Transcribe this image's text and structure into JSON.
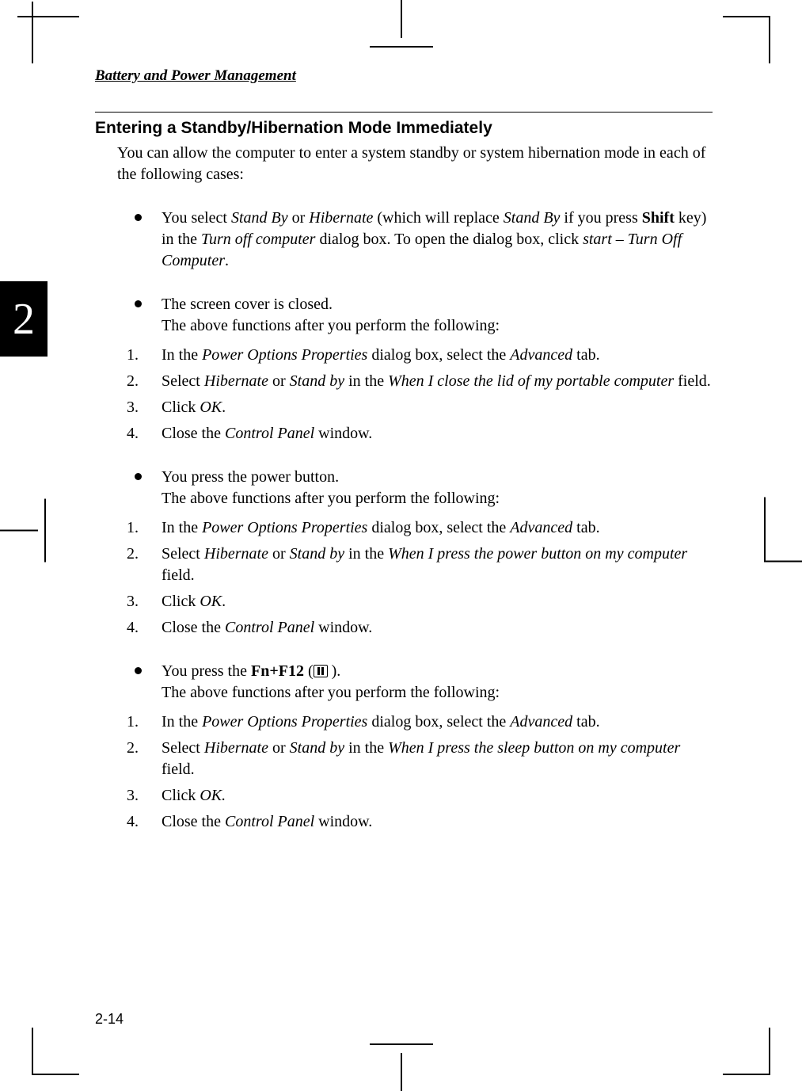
{
  "running_head": "Battery and Power Management",
  "chapter_number": "2",
  "page_number": "2-14",
  "heading": "Entering a Standby/Hibernation Mode Immediately",
  "intro": "You can allow the computer to enter a system standby or system hibernation mode in each of the following cases:",
  "b1": {
    "pre": "You select ",
    "i1": "Stand By",
    "mid1": " or ",
    "i2": "Hibernate",
    "mid2": " (which will replace ",
    "i3": "Stand By",
    "mid3": " if you press ",
    "bold1": "Shift",
    "mid4": " key) in the ",
    "i4": "Turn off computer",
    "mid5": " dialog box. To open the dialog box, click ",
    "i5": "start",
    "dash": " – ",
    "i6": "Turn Off Computer",
    "end": "."
  },
  "b2": {
    "l1": "The screen cover is closed.",
    "l2": "The above functions after you perform the following:"
  },
  "steps_a": {
    "s1_pre": "In the ",
    "s1_i1": "Power Options Properties",
    "s1_mid": " dialog box, select the ",
    "s1_i2": "Advanced",
    "s1_end": " tab.",
    "s2_pre": "Select ",
    "s2_i1": "Hibernate",
    "s2_mid1": " or ",
    "s2_i2": "Stand by",
    "s2_mid2": " in the ",
    "s2_i3": "When I close the lid of my portable computer",
    "s2_end": " field.",
    "s3_pre": "Click ",
    "s3_i1": "OK",
    "s3_end": ".",
    "s4_pre": "Close the ",
    "s4_i1": "Control Panel",
    "s4_end": " window."
  },
  "b3": {
    "l1": "You press the power button.",
    "l2": "The above functions after you perform the following:"
  },
  "steps_b": {
    "s1_pre": "In the ",
    "s1_i1": "Power Options Properties",
    "s1_mid": " dialog box, select the ",
    "s1_i2": "Advanced",
    "s1_end": " tab.",
    "s2_pre": "Select ",
    "s2_i1": "Hibernate",
    "s2_mid1": " or ",
    "s2_i2": "Stand by",
    "s2_mid2": " in the ",
    "s2_i3": "When I press the power button on my computer",
    "s2_end": " field.",
    "s3_pre": "Click ",
    "s3_i1": "OK",
    "s3_end": ".",
    "s4_pre": "Close the ",
    "s4_i1": "Control Panel",
    "s4_end": " window."
  },
  "b4": {
    "pre": "You press the ",
    "bold": "Fn+F12",
    "paren_open": " (",
    "paren_close": " ).",
    "l2": "The above functions after you perform the following:"
  },
  "steps_c": {
    "s1_pre": "In the ",
    "s1_i1": "Power Options Properties",
    "s1_mid": " dialog box, select the ",
    "s1_i2": "Advanced",
    "s1_end": " tab.",
    "s2_pre": "Select ",
    "s2_i1": "Hibernate",
    "s2_mid1": " or ",
    "s2_i2": "Stand by",
    "s2_mid2": " in the ",
    "s2_i3": "When I press the sleep button on my computer",
    "s2_end": " field.",
    "s3_pre": "Click ",
    "s3_i1": "OK.",
    "s4_pre": "Close the ",
    "s4_i1": "Control Panel",
    "s4_end": " window."
  }
}
